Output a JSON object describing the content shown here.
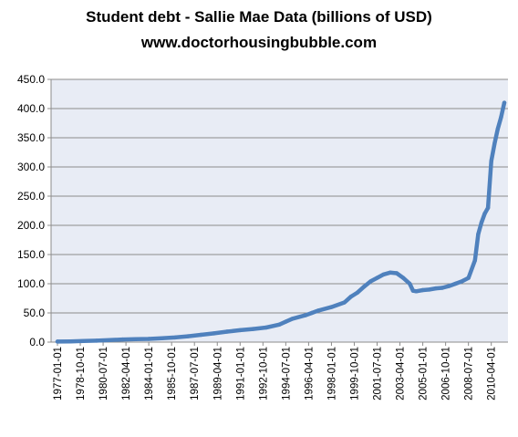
{
  "chart_data": {
    "type": "line",
    "title": "Student debt - Sallie Mae Data (billions of USD)",
    "subtitle": "www.doctorhousingbubble.com",
    "xlabel": "",
    "ylabel": "",
    "ylim": [
      0,
      450
    ],
    "yticks": [
      "0.0",
      "50.0",
      "100.0",
      "150.0",
      "200.0",
      "250.0",
      "300.0",
      "350.0",
      "400.0",
      "450.0"
    ],
    "xticks": [
      "1977-01-01",
      "1978-10-01",
      "1980-07-01",
      "1982-04-01",
      "1984-01-01",
      "1985-10-01",
      "1987-07-01",
      "1989-04-01",
      "1991-01-01",
      "1992-10-01",
      "1994-07-01",
      "1996-04-01",
      "1998-01-01",
      "1999-10-01",
      "2001-07-01",
      "2003-04-01",
      "2005-01-01",
      "2006-10-01",
      "2008-07-01",
      "2010-04-01"
    ],
    "grid": true,
    "legend": "none",
    "colors": {
      "line": "#4f81bd",
      "plot_bg": "#e8ecf5",
      "grid": "#8c8c8c"
    },
    "series": [
      {
        "name": "",
        "x": [
          "1977-01-01",
          "1978-01-01",
          "1979-01-01",
          "1980-01-01",
          "1981-01-01",
          "1982-01-01",
          "1983-01-01",
          "1984-01-01",
          "1985-01-01",
          "1986-01-01",
          "1987-01-01",
          "1988-01-01",
          "1989-01-01",
          "1990-01-01",
          "1991-01-01",
          "1992-01-01",
          "1993-01-01",
          "1994-01-01",
          "1994-07-01",
          "1995-01-01",
          "1996-01-01",
          "1996-07-01",
          "1997-01-01",
          "1998-01-01",
          "1999-01-01",
          "1999-07-01",
          "2000-01-01",
          "2000-07-01",
          "2001-01-01",
          "2001-07-01",
          "2002-01-01",
          "2002-07-01",
          "2003-01-01",
          "2003-07-01",
          "2004-01-01",
          "2004-04-01",
          "2004-07-01",
          "2005-01-01",
          "2005-07-01",
          "2006-01-01",
          "2006-07-01",
          "2007-01-01",
          "2007-07-01",
          "2008-01-01",
          "2008-07-01",
          "2009-01-01",
          "2009-04-01",
          "2009-07-01",
          "2009-10-01",
          "2010-01-01",
          "2010-04-01",
          "2010-07-01",
          "2010-10-01",
          "2011-01-01",
          "2011-04-01"
        ],
        "values": [
          1.0,
          1.3,
          1.8,
          2.5,
          3.5,
          4.5,
          5.0,
          5.5,
          6.5,
          8.0,
          10.0,
          12.5,
          15.0,
          18.0,
          20.5,
          22.5,
          25.0,
          30.0,
          35.0,
          40.0,
          46.0,
          50.0,
          54.0,
          60.0,
          68.0,
          78.0,
          85.0,
          95.0,
          104.0,
          110.0,
          116.0,
          119.0,
          118.0,
          110.0,
          100.0,
          88.0,
          87.0,
          89.0,
          90.0,
          92.0,
          93.0,
          96.0,
          100.0,
          104.0,
          110.0,
          140.0,
          185.0,
          205.0,
          220.0,
          230.0,
          310.0,
          340.0,
          365.0,
          385.0,
          410.0
        ]
      }
    ]
  }
}
